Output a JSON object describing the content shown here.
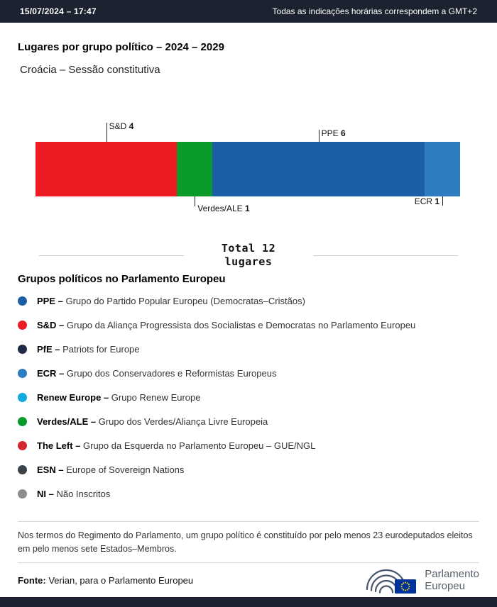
{
  "header": {
    "datetime": "15/07/2024 – 17:47",
    "timezone_note": "Todas as indicações horárias correspondem a GMT+2"
  },
  "title": "Lugares por grupo político – 2024 – 2029",
  "subtitle": "Croácia – Sessão constitutiva",
  "chart_data": {
    "type": "bar",
    "stacked": true,
    "orientation": "horizontal",
    "title": "Lugares por grupo político – 2024 – 2029",
    "subtitle": "Croácia – Sessão constitutiva",
    "total": 12,
    "total_label_line1": "Total 12",
    "total_label_line2": "lugares",
    "segments": [
      {
        "name": "S&D",
        "value": 4,
        "color": "#ed1c24",
        "label_position": "top"
      },
      {
        "name": "Verdes/ALE",
        "value": 1,
        "color": "#0a9a2c",
        "label_position": "bottom"
      },
      {
        "name": "PPE",
        "value": 6,
        "color": "#1b5fa4",
        "label_position": "top"
      },
      {
        "name": "ECR",
        "value": 1,
        "color": "#2f7dc1",
        "label_position": "bottom-right"
      }
    ]
  },
  "legend": {
    "heading": "Grupos políticos no Parlamento Europeu",
    "items": [
      {
        "abbr": "PPE –",
        "desc": "Grupo do Partido Popular Europeu (Democratas–Cristãos)",
        "color": "#1b5fa4"
      },
      {
        "abbr": "S&D –",
        "desc": "Grupo da Aliança Progressista dos Socialistas e Democratas no Parlamento Europeu",
        "color": "#ed1c24"
      },
      {
        "abbr": "PfE –",
        "desc": "Patriots for Europe",
        "color": "#1f2a44"
      },
      {
        "abbr": "ECR –",
        "desc": "Grupo dos Conservadores e Reformistas Europeus",
        "color": "#2f7dc1"
      },
      {
        "abbr": "Renew Europe –",
        "desc": "Grupo Renew Europe",
        "color": "#14a8e0"
      },
      {
        "abbr": "Verdes/ALE –",
        "desc": "Grupo dos Verdes/Aliança Livre Europeia",
        "color": "#0a9a2c"
      },
      {
        "abbr": "The Left –",
        "desc": "Grupo da Esquerda no Parlamento Europeu – GUE/NGL",
        "color": "#d22730"
      },
      {
        "abbr": "ESN –",
        "desc": "Europe of Sovereign Nations",
        "color": "#3b4248"
      },
      {
        "abbr": "NI –",
        "desc": "Não Inscritos",
        "color": "#8c8c8c"
      }
    ]
  },
  "footnote": "Nos termos do Regimento do Parlamento, um grupo político é constituído por pelo menos 23 eurodeputados eleitos em pelo menos sete Estados–Membros.",
  "source": {
    "label": "Fonte:",
    "text": "Verian, para o Parlamento Europeu"
  },
  "logo": {
    "line1": "Parlamento",
    "line2": "Europeu"
  }
}
